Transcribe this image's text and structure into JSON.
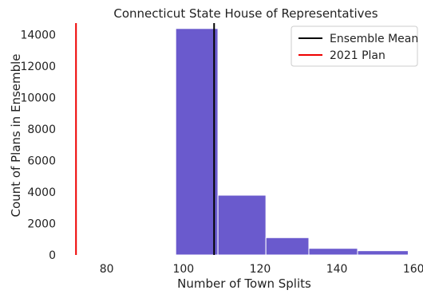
{
  "chart_data": {
    "type": "bar",
    "title": "Connecticut State House of Representatives",
    "xlabel": "Number of Town Splits",
    "ylabel": "Count of Plans in Ensemble",
    "xlim": [
      68,
      161
    ],
    "ylim": [
      0,
      15200
    ],
    "xticks": [
      80,
      100,
      120,
      140,
      160
    ],
    "yticks": [
      0,
      2000,
      4000,
      6000,
      8000,
      10000,
      12000,
      14000
    ],
    "bins": [
      {
        "x0": 98,
        "x1": 109,
        "value": 14400
      },
      {
        "x0": 109,
        "x1": 121.5,
        "value": 3800
      },
      {
        "x0": 121.5,
        "x1": 132.7,
        "value": 1100
      },
      {
        "x0": 132.7,
        "x1": 145.4,
        "value": 420
      },
      {
        "x0": 145.4,
        "x1": 158.6,
        "value": 270
      }
    ],
    "bar_color": "#6a5acd",
    "vlines": [
      {
        "name": "Ensemble Mean",
        "x": 108,
        "color": "#000000"
      },
      {
        "name": "2021 Plan",
        "x": 72,
        "color": "#ee0000"
      }
    ],
    "legend_position": "top-right",
    "grid": false
  }
}
